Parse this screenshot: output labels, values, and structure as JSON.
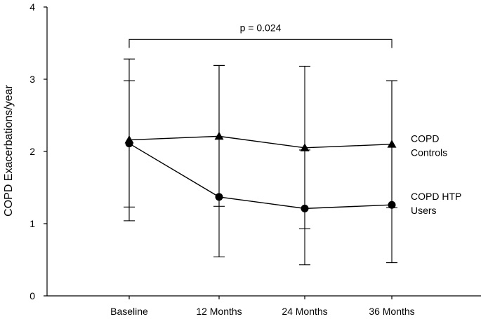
{
  "chart_data": {
    "type": "line",
    "title": "",
    "xlabel": "",
    "ylabel": "COPD Exacerbations/year",
    "ylim": [
      0,
      4
    ],
    "yticks": [
      0,
      1,
      2,
      3,
      4
    ],
    "categories": [
      "Baseline",
      "12 Months",
      "24 Months",
      "36 Months"
    ],
    "series": [
      {
        "name": "COPD Controls",
        "label_lines": [
          "COPD",
          "Controls"
        ],
        "marker": "triangle",
        "values": [
          2.16,
          2.21,
          2.05,
          2.1
        ],
        "error_low": [
          1.04,
          1.24,
          0.93,
          1.22
        ],
        "error_high": [
          3.28,
          3.19,
          3.18,
          2.98
        ]
      },
      {
        "name": "COPD HTP Users",
        "label_lines": [
          "COPD HTP",
          "Users"
        ],
        "marker": "circle",
        "values": [
          2.11,
          1.37,
          1.21,
          1.26
        ],
        "error_low": [
          1.23,
          0.54,
          0.43,
          0.46
        ],
        "error_high": [
          2.98,
          3.19,
          2.02,
          2.98
        ]
      }
    ],
    "annotations": [
      {
        "text": "p = 0.024",
        "from_category": "Baseline",
        "to_category": "36 Months",
        "y": 3.55
      }
    ],
    "grid": false,
    "legend": "inline-right"
  }
}
